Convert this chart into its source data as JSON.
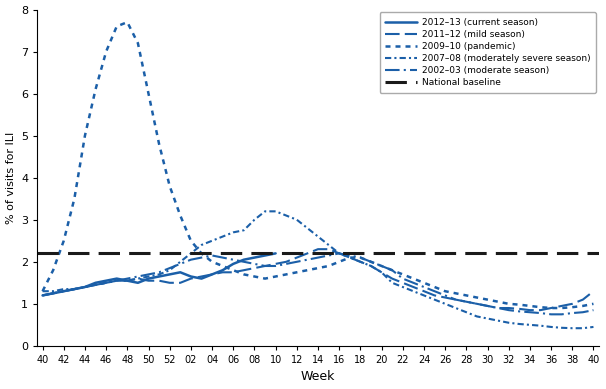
{
  "xlabel": "Week",
  "ylabel": "% of visits for ILI",
  "ylim": [
    0,
    8
  ],
  "yticks": [
    0,
    1,
    2,
    3,
    4,
    5,
    6,
    7,
    8
  ],
  "baseline": 2.2,
  "color": "#1B5FA8",
  "xtick_labels": [
    "40",
    "42",
    "44",
    "46",
    "48",
    "50",
    "52",
    "02",
    "04",
    "06",
    "08",
    "10",
    "12",
    "14",
    "16",
    "18",
    "20",
    "22",
    "24",
    "26",
    "28",
    "30",
    "32",
    "34",
    "36",
    "38",
    "40"
  ],
  "season_2012_13": [
    1.2,
    1.25,
    1.3,
    1.35,
    1.4,
    1.5,
    1.55,
    1.6,
    1.55,
    1.5,
    1.6,
    1.65,
    1.7,
    1.75,
    1.65,
    1.6,
    1.7,
    1.8,
    1.95,
    2.05,
    2.1,
    2.15,
    2.2,
    null,
    null,
    null,
    null,
    null,
    null,
    null,
    null,
    null,
    null,
    null,
    null,
    null,
    null,
    null,
    null,
    null,
    null,
    null,
    null,
    null,
    null,
    null,
    null,
    null,
    null,
    null,
    null,
    null,
    null,
    null
  ],
  "season_2011_12": [
    1.2,
    1.25,
    1.3,
    1.35,
    1.4,
    1.45,
    1.5,
    1.55,
    1.55,
    1.6,
    1.55,
    1.55,
    1.5,
    1.5,
    1.6,
    1.65,
    1.7,
    1.75,
    1.75,
    1.8,
    1.85,
    1.9,
    1.95,
    2.0,
    2.1,
    2.2,
    2.3,
    2.3,
    2.2,
    2.1,
    2.0,
    1.9,
    1.75,
    1.6,
    1.5,
    1.4,
    1.3,
    1.2,
    1.15,
    1.1,
    1.05,
    1.0,
    0.95,
    0.9,
    0.9,
    0.88,
    0.85,
    0.85,
    0.9,
    0.95,
    1.0,
    1.1,
    1.3
  ],
  "season_2009_10": [
    1.3,
    1.8,
    2.5,
    3.5,
    5.0,
    6.1,
    7.0,
    7.6,
    7.7,
    7.2,
    6.0,
    4.8,
    3.8,
    3.1,
    2.5,
    2.2,
    2.0,
    1.9,
    1.8,
    1.7,
    1.65,
    1.6,
    1.65,
    1.7,
    1.75,
    1.8,
    1.85,
    1.9,
    2.0,
    2.1,
    2.1,
    2.0,
    1.9,
    1.8,
    1.7,
    1.6,
    1.5,
    1.4,
    1.3,
    1.25,
    1.2,
    1.15,
    1.1,
    1.05,
    1.0,
    0.98,
    0.95,
    0.92,
    0.9,
    0.9,
    0.92,
    0.95,
    1.0
  ],
  "season_2007_08": [
    1.3,
    1.3,
    1.35,
    1.35,
    1.4,
    1.45,
    1.5,
    1.55,
    1.55,
    1.6,
    1.65,
    1.7,
    1.8,
    2.0,
    2.2,
    2.4,
    2.5,
    2.6,
    2.7,
    2.75,
    3.0,
    3.2,
    3.2,
    3.1,
    3.0,
    2.8,
    2.6,
    2.4,
    2.2,
    2.1,
    2.0,
    1.9,
    1.75,
    1.5,
    1.4,
    1.3,
    1.2,
    1.1,
    1.0,
    0.9,
    0.8,
    0.7,
    0.65,
    0.6,
    0.55,
    0.52,
    0.5,
    0.48,
    0.45,
    0.43,
    0.42,
    0.42,
    0.45
  ],
  "season_2002_03": [
    1.2,
    1.25,
    1.3,
    1.35,
    1.4,
    1.45,
    1.5,
    1.55,
    1.6,
    1.65,
    1.7,
    1.75,
    1.85,
    1.95,
    2.05,
    2.1,
    2.15,
    2.1,
    2.05,
    2.0,
    1.95,
    1.9,
    1.9,
    1.95,
    2.0,
    2.05,
    2.1,
    2.15,
    2.2,
    2.15,
    2.1,
    2.0,
    1.9,
    1.8,
    1.6,
    1.5,
    1.4,
    1.3,
    1.2,
    1.1,
    1.05,
    1.0,
    0.95,
    0.9,
    0.85,
    0.82,
    0.8,
    0.78,
    0.75,
    0.75,
    0.78,
    0.8,
    0.85
  ],
  "legend_labels": [
    "2012–13 (current season)",
    "2011–12 (mild season)",
    "2009–10 (pandemic)",
    "2007–08 (moderately severe season)",
    "2002–03 (moderate season)",
    "National baseline"
  ]
}
